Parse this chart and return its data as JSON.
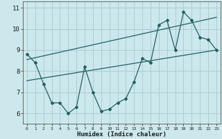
{
  "x": [
    0,
    1,
    2,
    3,
    4,
    5,
    6,
    7,
    8,
    9,
    10,
    11,
    12,
    13,
    14,
    15,
    16,
    17,
    18,
    19,
    20,
    21,
    22,
    23
  ],
  "y": [
    8.8,
    8.4,
    7.4,
    6.5,
    6.5,
    6.0,
    6.3,
    8.2,
    7.0,
    6.1,
    6.2,
    6.5,
    6.7,
    7.5,
    8.6,
    8.4,
    10.2,
    10.4,
    9.0,
    10.8,
    10.4,
    9.6,
    9.5,
    9.0
  ],
  "trend1_x": [
    0,
    23
  ],
  "trend1_y": [
    7.55,
    9.0
  ],
  "trend2_x": [
    0,
    23
  ],
  "trend2_y": [
    8.55,
    10.55
  ],
  "line_color": "#206060",
  "bg_color": "#cce8ec",
  "grid_color": "#aacdd4",
  "xlabel": "Humidex (Indice chaleur)",
  "xlim": [
    -0.5,
    23.5
  ],
  "ylim": [
    5.5,
    11.3
  ],
  "yticks": [
    6,
    7,
    8,
    9,
    10,
    11
  ],
  "xticks": [
    0,
    1,
    2,
    3,
    4,
    5,
    6,
    7,
    8,
    9,
    10,
    11,
    12,
    13,
    14,
    15,
    16,
    17,
    18,
    19,
    20,
    21,
    22,
    23
  ]
}
